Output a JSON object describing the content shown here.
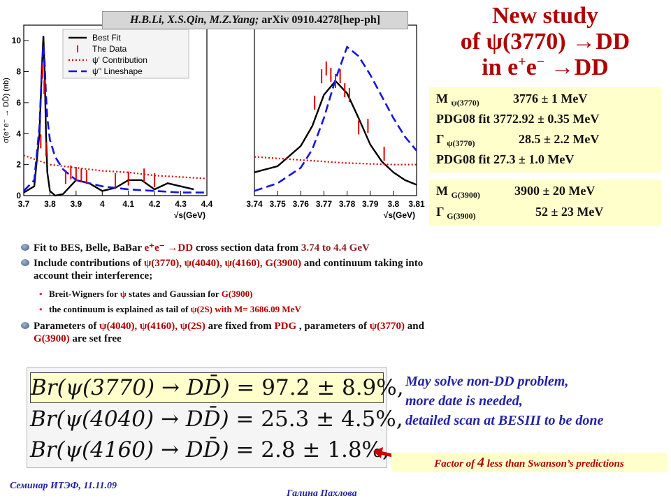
{
  "citation": {
    "authors": "H.B.Li, X.S.Qin, M.Z.Yang;",
    "ref": " arXiv 0910.4278[hep-ph]"
  },
  "title": {
    "line1": "New study",
    "line2": "of ψ(3770) →DD",
    "line3_a": "in e",
    "line3_sup1": "+",
    "line3_b": "e",
    "line3_sup2": "−",
    "line3_c": " →DD"
  },
  "params_box1": [
    {
      "label": "M",
      "sub": "ψ(3770)",
      "value": "3776  ± 1 MeV"
    },
    {
      "label": "PDG08 fit 3772.92 ± 0.35 MeV",
      "sub": "",
      "value": ""
    },
    {
      "label": "Γ",
      "sub": "ψ(3770)",
      "value": "28.5 ± 2.2 MeV"
    },
    {
      "label": "PDG08 fit  27.3 ± 1.0 MeV",
      "sub": "",
      "value": ""
    }
  ],
  "params_box2": [
    {
      "label": "M",
      "sub": "G(3900)",
      "value": "3900  ± 20 MeV"
    },
    {
      "label": "Γ",
      "sub": "G(3900)",
      "value": "52 ± 23 MeV"
    }
  ],
  "bullets": {
    "b1_a": "Fit to BES, Belle, BaBar ",
    "b1_b": "e⁺e⁻ →DD",
    "b1_c": " cross section data from ",
    "b1_d": "3.74 to 4.4 GeV",
    "b2_a": "Include contributions of ",
    "b2_b": "ψ(3770), ψ(4040), ψ(4160), G(3900)",
    "b2_c": " and continuum taking into",
    "b2_d": "account their interference;",
    "s1_a": "Breit-Wigners for ",
    "s1_b": "ψ",
    "s1_c": " states and Gaussian for ",
    "s1_d": "G(3900)",
    "s2_a": "the continuum is explained as tail of ",
    "s2_b": "ψ(2S) with M= 3686.09 MeV",
    "b3_a": "Parameters of ",
    "b3_b": "ψ(4040), ψ(4160), ψ(2S)",
    "b3_c": "  are fixed from ",
    "b3_d": "PDG",
    "b3_e": " , parameters of ",
    "b3_f": "ψ(3770)",
    "b3_g": " and",
    "b3_h": "G(3900)",
    "b3_i": " are set free"
  },
  "formulas": [
    {
      "lhs": "Br(ψ(3770) → DD̄)",
      "rhs": " = 97.2 ± 8.9%,"
    },
    {
      "lhs": "Br(ψ(4040) → DD̄)",
      "rhs": " = 25.3 ± 4.5%,"
    },
    {
      "lhs": "Br(ψ(4160) → DD̄)",
      "rhs": " = 2.8 ± 1.8%,"
    }
  ],
  "comment": {
    "l1": "May solve non-DD problem,",
    "l2": "more date is needed,",
    "l3": "detailed scan at BESIII to be done"
  },
  "factor": {
    "a": "Factor of ",
    "b": "4",
    "c": " less than Swanson’s predictions"
  },
  "footer": {
    "left": "Семинар ИТЭФ, 11.11.09",
    "mid": "Галина Пахлова"
  },
  "chart_data": [
    {
      "type": "line",
      "title": "",
      "xlabel": "√s(GeV)",
      "ylabel": "σ(e⁺e⁻ → DD̄) (nb)",
      "xlim": [
        3.7,
        4.4
      ],
      "ylim": [
        0,
        11
      ],
      "xticks": [
        "3.7",
        "3.8",
        "3.9",
        "4",
        "4.1",
        "4.2",
        "4.3",
        "4.4"
      ],
      "yticks": [
        "0",
        "2",
        "4",
        "6",
        "8",
        "10"
      ],
      "legend": [
        "Best Fit",
        "The Data",
        "ψ' Contribution",
        "ψ'' Lineshape"
      ],
      "legend_position": "top-right",
      "series": [
        {
          "name": "Best Fit",
          "style": "solid-black",
          "x": [
            3.7,
            3.74,
            3.76,
            3.77,
            3.775,
            3.78,
            3.785,
            3.79,
            3.8,
            3.82,
            3.85,
            3.9,
            3.95,
            4.0,
            4.05,
            4.1,
            4.15,
            4.2,
            4.25,
            4.3,
            4.35
          ],
          "y": [
            0.2,
            0.6,
            4,
            8.5,
            10.3,
            8,
            4,
            1.5,
            0.3,
            0,
            0.1,
            1.0,
            0.8,
            0.3,
            0.5,
            1.0,
            1.0,
            0.4,
            0.8,
            0.6,
            0.4
          ]
        },
        {
          "name": "ψ' Contribution",
          "style": "dotted-red",
          "x": [
            3.7,
            3.75,
            3.8,
            3.9,
            4.0,
            4.1,
            4.2,
            4.3,
            4.4
          ],
          "y": [
            2.6,
            2.3,
            2.0,
            1.8,
            1.6,
            1.5,
            1.3,
            1.2,
            1.1
          ]
        },
        {
          "name": "ψ'' Lineshape",
          "style": "dashed-blue",
          "x": [
            3.7,
            3.74,
            3.76,
            3.77,
            3.775,
            3.78,
            3.785,
            3.79,
            3.8,
            3.82,
            3.85,
            3.9,
            4.0,
            4.1,
            4.2,
            4.3,
            4.4
          ],
          "y": [
            0.3,
            1.0,
            4.5,
            8.5,
            9.7,
            8.6,
            6.5,
            5.0,
            3.6,
            2.5,
            1.7,
            1.0,
            0.6,
            0.4,
            0.3,
            0.2,
            0.2
          ]
        }
      ],
      "data_points": {
        "x": [
          3.765,
          3.772,
          3.778,
          3.785,
          3.86,
          3.88,
          3.9,
          3.92,
          3.94,
          4.05,
          4.1,
          4.16,
          4.2
        ],
        "y": [
          3.5,
          8,
          7,
          3,
          1.2,
          1.5,
          1.4,
          1.3,
          1.2,
          1.0,
          1.1,
          1.3,
          1.0
        ]
      }
    },
    {
      "type": "line",
      "title": "",
      "xlabel": "√s(GeV)",
      "ylabel": "",
      "xlim": [
        3.74,
        3.81
      ],
      "ylim": [
        0,
        11
      ],
      "xticks": [
        "3.74",
        "3.75",
        "3.76",
        "3.77",
        "3.78",
        "3.79",
        "3.8",
        "3.81"
      ],
      "series": [
        {
          "name": "Best Fit",
          "style": "solid-black",
          "x": [
            3.74,
            3.75,
            3.76,
            3.765,
            3.77,
            3.775,
            3.78,
            3.785,
            3.79,
            3.795,
            3.8,
            3.805,
            3.81
          ],
          "y": [
            1.5,
            1.9,
            3.2,
            4.5,
            6.5,
            7.4,
            6.6,
            5.0,
            3.3,
            2.2,
            1.5,
            1.0,
            0.7
          ]
        },
        {
          "name": "ψ' Contribution",
          "style": "dotted-red",
          "x": [
            3.74,
            3.76,
            3.78,
            3.8,
            3.81
          ],
          "y": [
            2.5,
            2.3,
            2.1,
            2.0,
            2.0
          ]
        },
        {
          "name": "ψ'' Lineshape",
          "style": "dashed-blue",
          "x": [
            3.74,
            3.75,
            3.76,
            3.765,
            3.77,
            3.775,
            3.78,
            3.785,
            3.79,
            3.795,
            3.8,
            3.805,
            3.81
          ],
          "y": [
            0.3,
            0.8,
            1.8,
            3.0,
            5.0,
            7.5,
            9.6,
            9.0,
            7.8,
            6.4,
            5.0,
            3.8,
            2.9
          ]
        }
      ],
      "data_points": {
        "x": [
          3.766,
          3.769,
          3.771,
          3.773,
          3.775,
          3.777,
          3.779,
          3.781,
          3.785,
          3.789,
          3.796
        ],
        "y": [
          6.0,
          7.7,
          8.2,
          7.8,
          7.4,
          7.7,
          6.8,
          6.5,
          4.4,
          4.5,
          2.7
        ]
      }
    }
  ]
}
